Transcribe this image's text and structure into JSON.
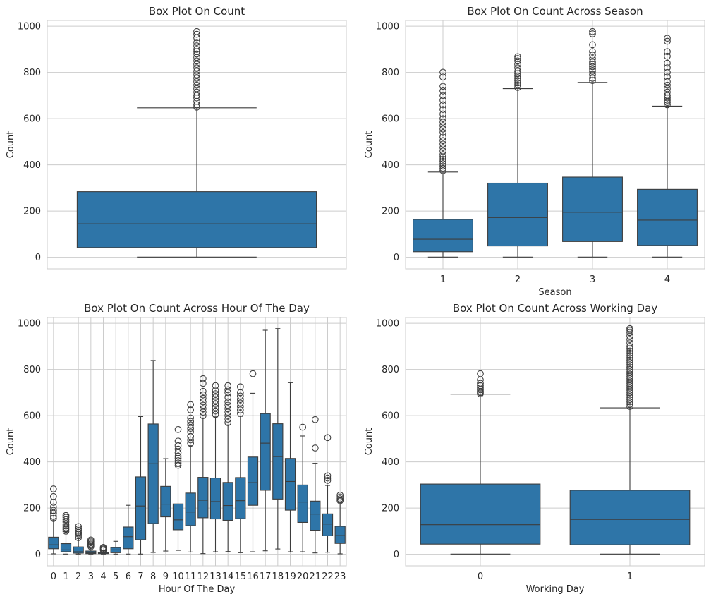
{
  "chart_data": [
    {
      "type": "box",
      "title": "Box Plot On Count",
      "xlabel": "",
      "ylabel": "Count",
      "ylim": [
        -50,
        1025
      ],
      "yticks": [
        0,
        200,
        400,
        600,
        800,
        1000
      ],
      "grid": true,
      "box_color": "#2e75a8",
      "categories": [
        ""
      ],
      "boxes": [
        {
          "min": 1,
          "q1": 42,
          "median": 145,
          "q3": 284,
          "max": 647,
          "outliers": [
            650,
            660,
            675,
            690,
            700,
            715,
            730,
            745,
            760,
            775,
            790,
            805,
            820,
            835,
            850,
            865,
            880,
            890,
            900,
            915,
            930,
            950,
            965,
            977
          ]
        }
      ]
    },
    {
      "type": "box",
      "title": "Box Plot On Count Across Season",
      "xlabel": "Season",
      "ylabel": "Count",
      "ylim": [
        -50,
        1025
      ],
      "yticks": [
        0,
        200,
        400,
        600,
        800,
        1000
      ],
      "grid": true,
      "box_color": "#2e75a8",
      "categories": [
        "1",
        "2",
        "3",
        "4"
      ],
      "boxes": [
        {
          "min": 1,
          "q1": 24,
          "median": 78,
          "q3": 164,
          "max": 369,
          "outliers": [
            375,
            385,
            395,
            405,
            415,
            425,
            435,
            445,
            460,
            475,
            490,
            505,
            520,
            540,
            555,
            570,
            585,
            600,
            620,
            640,
            660,
            680,
            700,
            720,
            740,
            780,
            801
          ]
        },
        {
          "min": 1,
          "q1": 49,
          "median": 172,
          "q3": 321,
          "max": 730,
          "outliers": [
            735,
            745,
            755,
            765,
            775,
            785,
            795,
            805,
            820,
            835,
            850,
            860,
            868
          ]
        },
        {
          "min": 1,
          "q1": 68,
          "median": 195,
          "q3": 347,
          "max": 757,
          "outliers": [
            765,
            775,
            790,
            805,
            815,
            825,
            835,
            845,
            860,
            875,
            890,
            920,
            967,
            977
          ]
        },
        {
          "min": 1,
          "q1": 51,
          "median": 161,
          "q3": 294,
          "max": 654,
          "outliers": [
            660,
            670,
            680,
            690,
            700,
            715,
            730,
            745,
            760,
            780,
            800,
            820,
            840,
            870,
            890,
            935,
            948
          ]
        }
      ]
    },
    {
      "type": "box",
      "title": "Box Plot On Count Across Hour Of The Day",
      "xlabel": "Hour Of The Day",
      "ylabel": "Count",
      "ylim": [
        -50,
        1025
      ],
      "yticks": [
        0,
        200,
        400,
        600,
        800,
        1000
      ],
      "grid": true,
      "box_color": "#2e75a8",
      "categories": [
        "0",
        "1",
        "2",
        "3",
        "4",
        "5",
        "6",
        "7",
        "8",
        "9",
        "10",
        "11",
        "12",
        "13",
        "14",
        "15",
        "16",
        "17",
        "18",
        "19",
        "20",
        "21",
        "22",
        "23"
      ],
      "boxes": [
        {
          "min": 2,
          "q1": 24,
          "median": 41,
          "q3": 74,
          "max": 148,
          "outliers": [
            155,
            165,
            178,
            190,
            205,
            225,
            250,
            283
          ]
        },
        {
          "min": 1,
          "q1": 11,
          "median": 19,
          "q3": 46,
          "max": 98,
          "outliers": [
            100,
            108,
            115,
            122,
            130,
            140,
            150,
            160,
            168
          ]
        },
        {
          "min": 1,
          "q1": 5,
          "median": 11,
          "q3": 32,
          "max": 70,
          "outliers": [
            72,
            80,
            88,
            95,
            103,
            110,
            120
          ]
        },
        {
          "min": 1,
          "q1": 3,
          "median": 6,
          "q3": 14,
          "max": 30,
          "outliers": [
            33,
            38,
            44,
            50,
            56,
            62
          ]
        },
        {
          "min": 1,
          "q1": 3,
          "median": 6,
          "q3": 9,
          "max": 16,
          "outliers": [
            18,
            22,
            26,
            30
          ]
        },
        {
          "min": 1,
          "q1": 7,
          "median": 19,
          "q3": 29,
          "max": 56,
          "outliers": []
        },
        {
          "min": 1,
          "q1": 24,
          "median": 76,
          "q3": 118,
          "max": 212,
          "outliers": []
        },
        {
          "min": 1,
          "q1": 63,
          "median": 209,
          "q3": 335,
          "max": 596,
          "outliers": []
        },
        {
          "min": 8,
          "q1": 133,
          "median": 392,
          "q3": 564,
          "max": 839,
          "outliers": []
        },
        {
          "min": 14,
          "q1": 162,
          "median": 217,
          "q3": 294,
          "max": 414,
          "outliers": []
        },
        {
          "min": 17,
          "q1": 106,
          "median": 149,
          "q3": 218,
          "max": 380,
          "outliers": [
            385,
            395,
            405,
            415,
            425,
            440,
            455,
            470,
            490,
            540
          ]
        },
        {
          "min": 10,
          "q1": 124,
          "median": 183,
          "q3": 265,
          "max": 470,
          "outliers": [
            480,
            495,
            510,
            530,
            545,
            560,
            575,
            590,
            625,
            648
          ]
        },
        {
          "min": 3,
          "q1": 158,
          "median": 234,
          "q3": 333,
          "max": 590,
          "outliers": [
            600,
            615,
            630,
            645,
            660,
            675,
            690,
            705,
            740,
            760
          ]
        },
        {
          "min": 11,
          "q1": 153,
          "median": 228,
          "q3": 330,
          "max": 595,
          "outliers": [
            605,
            620,
            635,
            650,
            665,
            680,
            695,
            710,
            730
          ]
        },
        {
          "min": 12,
          "q1": 147,
          "median": 211,
          "q3": 311,
          "max": 560,
          "outliers": [
            570,
            585,
            600,
            615,
            630,
            645,
            660,
            680,
            700,
            712,
            730
          ]
        },
        {
          "min": 7,
          "q1": 154,
          "median": 232,
          "q3": 332,
          "max": 597,
          "outliers": [
            610,
            625,
            640,
            655,
            670,
            685,
            700,
            725
          ]
        },
        {
          "min": 11,
          "q1": 212,
          "median": 310,
          "q3": 421,
          "max": 697,
          "outliers": [
            782
          ]
        },
        {
          "min": 15,
          "q1": 277,
          "median": 481,
          "q3": 609,
          "max": 970,
          "outliers": []
        },
        {
          "min": 23,
          "q1": 239,
          "median": 423,
          "q3": 565,
          "max": 977,
          "outliers": []
        },
        {
          "min": 11,
          "q1": 191,
          "median": 315,
          "q3": 415,
          "max": 743,
          "outliers": []
        },
        {
          "min": 11,
          "q1": 138,
          "median": 226,
          "q3": 300,
          "max": 512,
          "outliers": [
            550
          ]
        },
        {
          "min": 6,
          "q1": 104,
          "median": 174,
          "q3": 230,
          "max": 394,
          "outliers": [
            460,
            583
          ]
        },
        {
          "min": 9,
          "q1": 80,
          "median": 131,
          "q3": 175,
          "max": 298,
          "outliers": [
            320,
            330,
            340,
            505
          ]
        },
        {
          "min": 2,
          "q1": 47,
          "median": 81,
          "q3": 121,
          "max": 224,
          "outliers": [
            232,
            240,
            248,
            256
          ]
        }
      ]
    },
    {
      "type": "box",
      "title": "Box Plot On Count Across Working Day",
      "xlabel": "Working Day",
      "ylabel": "Count",
      "ylim": [
        -50,
        1025
      ],
      "yticks": [
        0,
        200,
        400,
        600,
        800,
        1000
      ],
      "grid": true,
      "box_color": "#2e75a8",
      "categories": [
        "0",
        "1"
      ],
      "boxes": [
        {
          "min": 1,
          "q1": 44,
          "median": 128,
          "q3": 304,
          "max": 693,
          "outliers": [
            695,
            700,
            705,
            712,
            720,
            730,
            740,
            755,
            782
          ]
        },
        {
          "min": 1,
          "q1": 41,
          "median": 151,
          "q3": 277,
          "max": 634,
          "outliers": [
            640,
            650,
            660,
            670,
            680,
            690,
            700,
            710,
            720,
            730,
            740,
            750,
            760,
            770,
            780,
            790,
            800,
            810,
            820,
            830,
            840,
            850,
            860,
            870,
            880,
            890,
            900,
            915,
            930,
            945,
            960,
            970,
            977
          ]
        }
      ]
    }
  ]
}
